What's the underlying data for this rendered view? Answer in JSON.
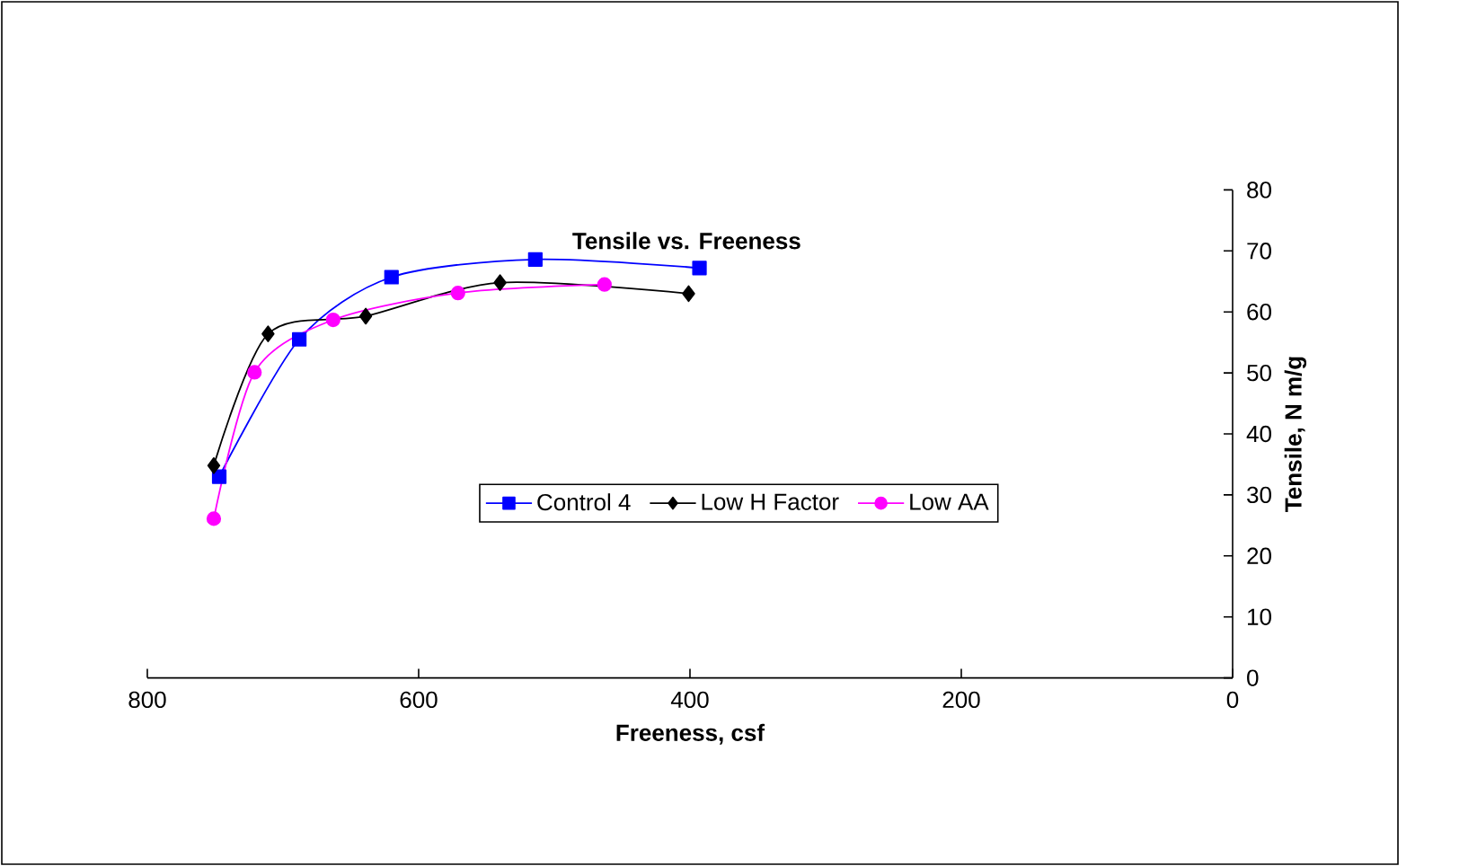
{
  "chart_data": {
    "type": "line",
    "title": "Tensile vs. Freeness",
    "xlabel": "Freeness, csf",
    "ylabel": "Tensile, N m/g",
    "xlim": [
      800,
      0
    ],
    "xticks": [
      800,
      600,
      400,
      200,
      0
    ],
    "ylim": [
      0,
      80
    ],
    "yticks": [
      0,
      10,
      20,
      30,
      40,
      50,
      60,
      70,
      80
    ],
    "grid": false,
    "legend": "center",
    "series": [
      {
        "name": "Control 4",
        "color": "#0000ff",
        "marker": "square",
        "x": [
          747,
          688,
          620,
          514,
          393
        ],
        "values": [
          33,
          55.5,
          65.7,
          68.6,
          67.2
        ]
      },
      {
        "name": "Low H Factor",
        "color": "#000000",
        "marker": "diamond",
        "x": [
          751,
          711,
          639,
          540,
          401
        ],
        "values": [
          34.8,
          56.4,
          59.3,
          64.8,
          63
        ]
      },
      {
        "name": "Low AA",
        "color": "#ff00ff",
        "marker": "circle",
        "x": [
          751,
          721,
          663,
          571,
          463
        ],
        "values": [
          26.1,
          50.1,
          58.7,
          63.1,
          64.5
        ]
      }
    ]
  }
}
